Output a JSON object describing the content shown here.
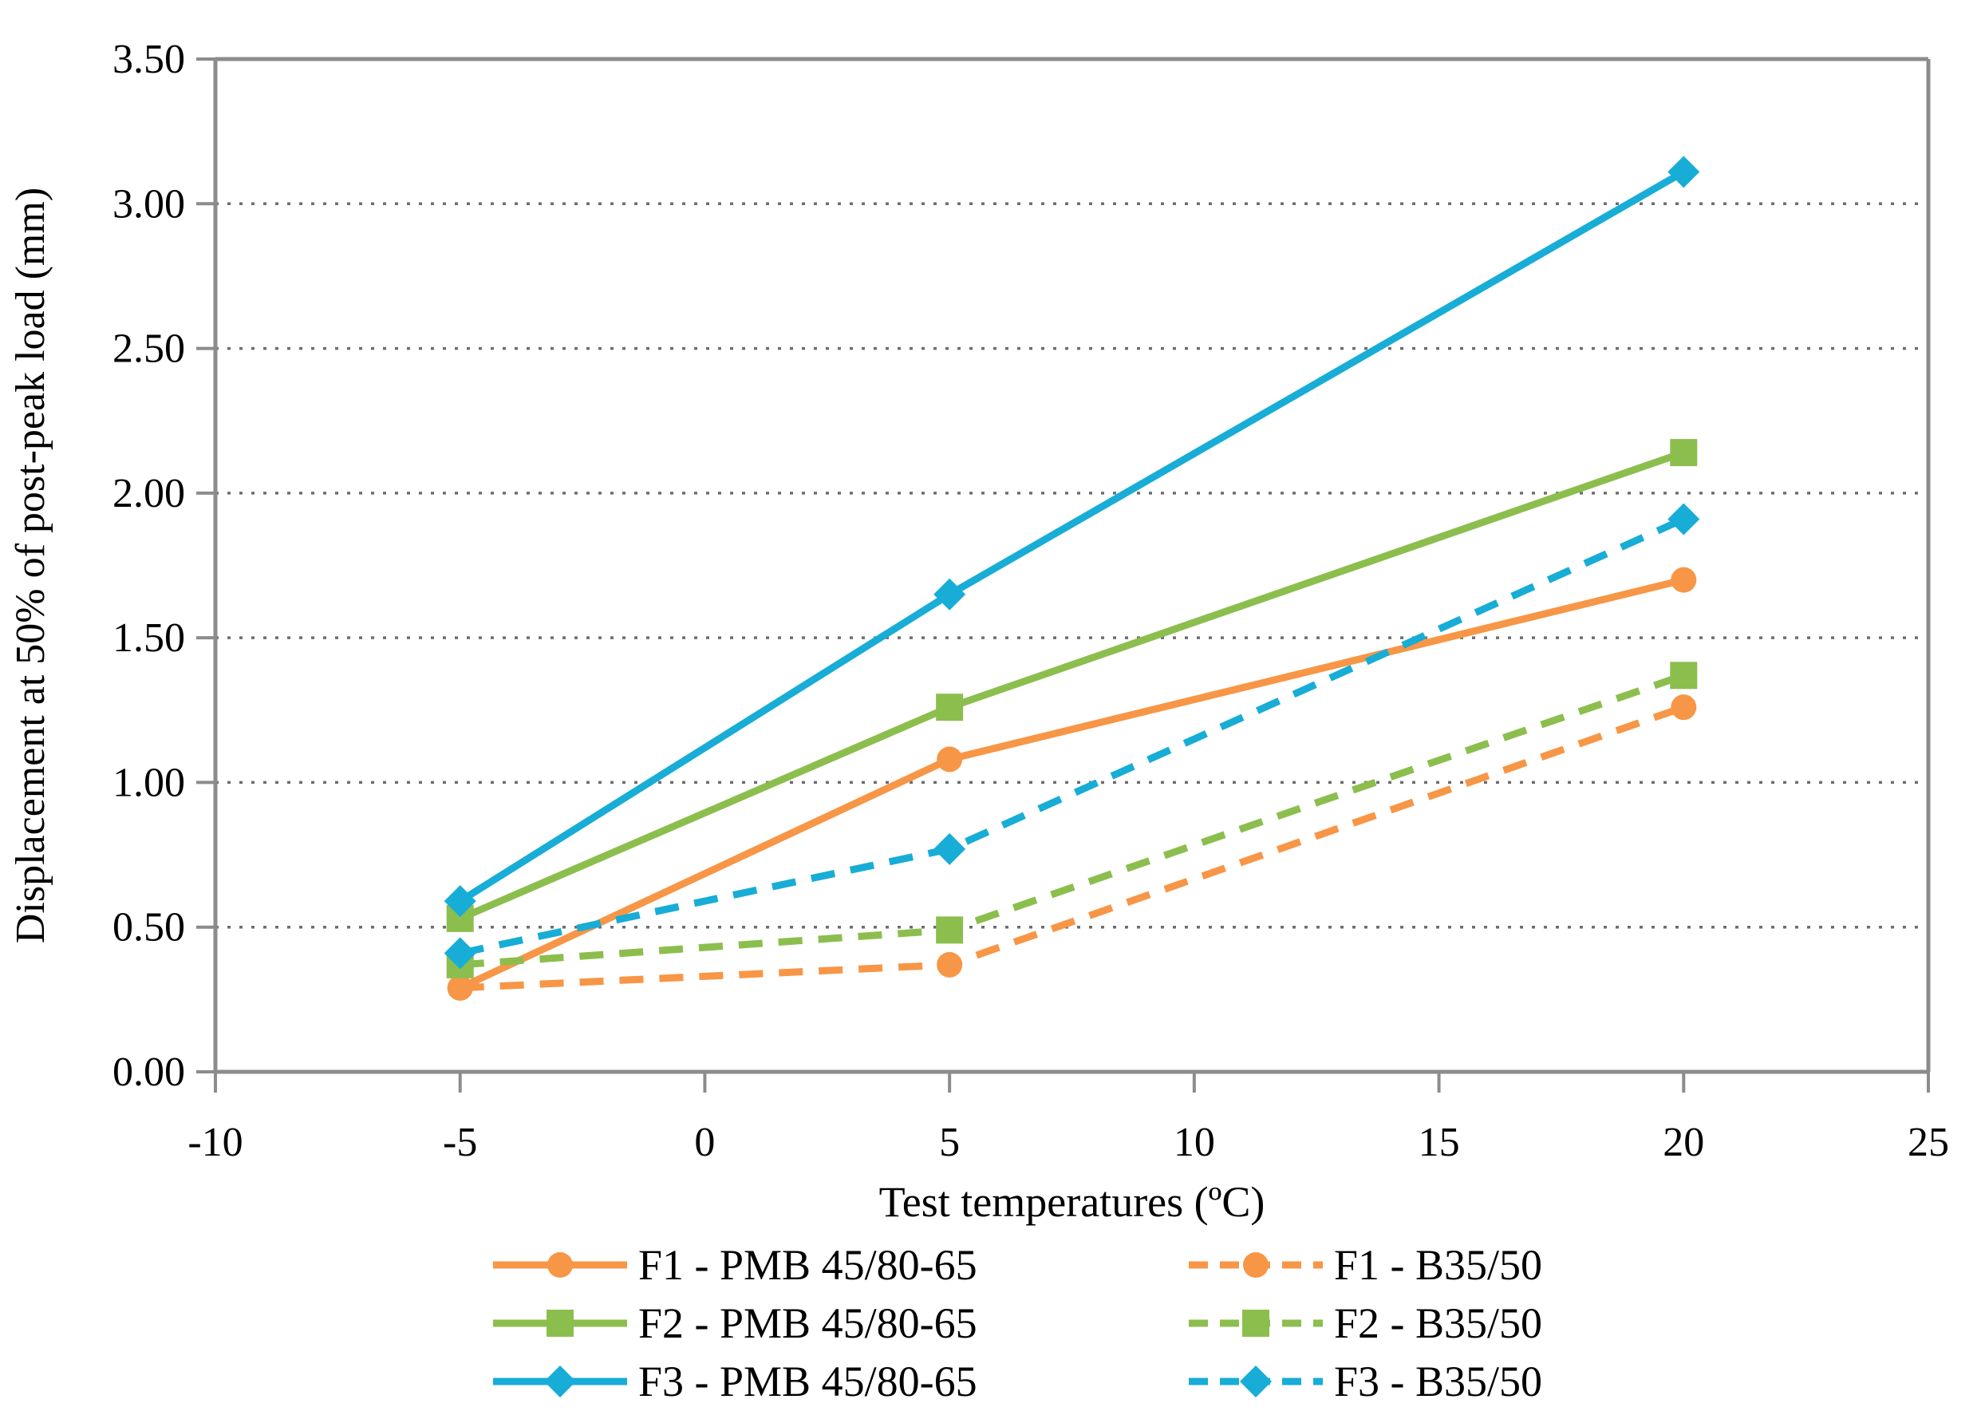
{
  "chart_data": {
    "type": "line",
    "title": "",
    "xlabel": "Test temperatures (ºC)",
    "ylabel": "Displacement at 50% of post-peak load (mm)",
    "xlim": [
      -10,
      25
    ],
    "ylim": [
      0,
      3.5
    ],
    "x_ticks": [
      -10,
      -5,
      0,
      5,
      10,
      15,
      20,
      25
    ],
    "y_tick_labels": [
      "0.00",
      "0.50",
      "1.00",
      "1.50",
      "2.00",
      "2.50",
      "3.00",
      "3.50"
    ],
    "y_tick_step": 0.5,
    "grid": "horizontal dotted gridlines at every 0.50",
    "legend_position": "bottom, two columns, three rows",
    "x": [
      -5,
      5,
      20
    ],
    "series": [
      {
        "name": "F1 - PMB 45/80-65",
        "values": [
          0.29,
          1.08,
          1.7
        ],
        "color": "#F79646",
        "marker": "circle",
        "line_style": "solid"
      },
      {
        "name": "F2 - PMB 45/80-65",
        "values": [
          0.53,
          1.26,
          2.14
        ],
        "color": "#8CBE4E",
        "marker": "square",
        "line_style": "solid"
      },
      {
        "name": "F3 - PMB 45/80-65",
        "values": [
          0.59,
          1.65,
          3.11
        ],
        "color": "#17ADD6",
        "marker": "diamond",
        "line_style": "solid"
      },
      {
        "name": "F1 - B35/50",
        "values": [
          0.29,
          0.37,
          1.26
        ],
        "color": "#F79646",
        "marker": "circle",
        "line_style": "dashed"
      },
      {
        "name": "F2 - B35/50",
        "values": [
          0.37,
          0.49,
          1.37
        ],
        "color": "#8CBE4E",
        "marker": "square",
        "line_style": "dashed"
      },
      {
        "name": "F3 - B35/50",
        "values": [
          0.41,
          0.77,
          1.91
        ],
        "color": "#17ADD6",
        "marker": "diamond",
        "line_style": "dashed"
      }
    ],
    "colors": {
      "axis": "#8C8C8C",
      "grid": "#6E6E6E",
      "text": "#000000",
      "background": "#FFFFFF"
    }
  }
}
